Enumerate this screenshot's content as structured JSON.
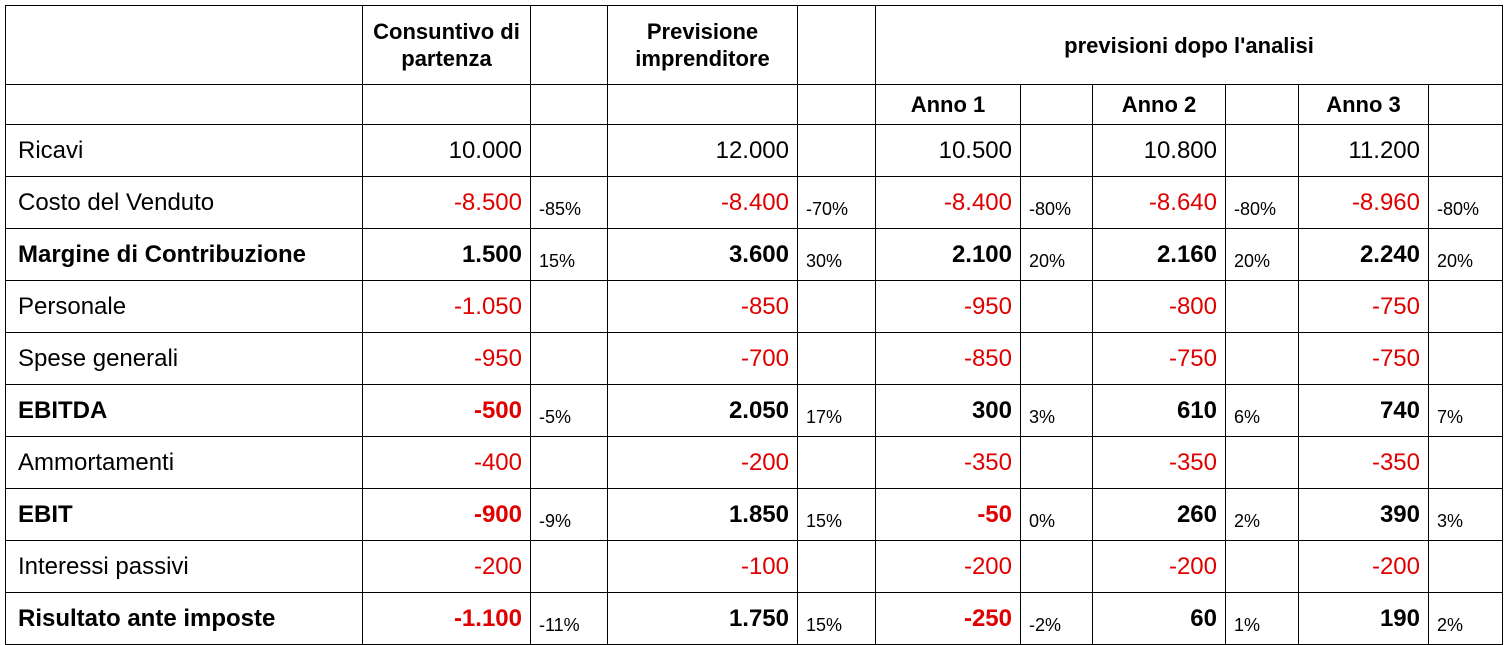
{
  "header": {
    "consuntivo": "Consuntivo di partenza",
    "previsione": "Previsione imprenditore",
    "analisi": "previsioni dopo l'analisi",
    "years": [
      "Anno 1",
      "Anno 2",
      "Anno 3"
    ]
  },
  "negative_color": "#e00000",
  "rows": [
    {
      "label": "Ricavi",
      "bold": false,
      "cells": [
        "10.000",
        null,
        "12.000",
        null,
        "10.500",
        null,
        "10.800",
        null,
        "11.200",
        null
      ]
    },
    {
      "label": "Costo del Venduto",
      "bold": false,
      "cells": [
        "-8.500",
        "-85%",
        "-8.400",
        "-70%",
        "-8.400",
        "-80%",
        "-8.640",
        "-80%",
        "-8.960",
        "-80%"
      ]
    },
    {
      "label": "Margine di Contribuzione",
      "bold": true,
      "cells": [
        "1.500",
        "15%",
        "3.600",
        "30%",
        "2.100",
        "20%",
        "2.160",
        "20%",
        "2.240",
        "20%"
      ]
    },
    {
      "label": "Personale",
      "bold": false,
      "cells": [
        "-1.050",
        null,
        "-850",
        null,
        "-950",
        null,
        "-800",
        null,
        "-750",
        null
      ]
    },
    {
      "label": "Spese generali",
      "bold": false,
      "cells": [
        "-950",
        null,
        "-700",
        null,
        "-850",
        null,
        "-750",
        null,
        "-750",
        null
      ]
    },
    {
      "label": "EBITDA",
      "bold": true,
      "cells": [
        "-500",
        "-5%",
        "2.050",
        "17%",
        "300",
        "3%",
        "610",
        "6%",
        "740",
        "7%"
      ]
    },
    {
      "label": "Ammortamenti",
      "bold": false,
      "cells": [
        "-400",
        null,
        "-200",
        null,
        "-350",
        null,
        "-350",
        null,
        "-350",
        null
      ]
    },
    {
      "label": "EBIT",
      "bold": true,
      "cells": [
        "-900",
        "-9%",
        "1.850",
        "15%",
        "-50",
        "0%",
        "260",
        "2%",
        "390",
        "3%"
      ]
    },
    {
      "label": "Interessi passivi",
      "bold": false,
      "cells": [
        "-200",
        null,
        "-100",
        null,
        "-200",
        null,
        "-200",
        null,
        "-200",
        null
      ]
    },
    {
      "label": "Risultato ante imposte",
      "bold": true,
      "cells": [
        "-1.100",
        "-11%",
        "1.750",
        "15%",
        "-250",
        "-2%",
        "60",
        "1%",
        "190",
        "2%"
      ]
    }
  ]
}
